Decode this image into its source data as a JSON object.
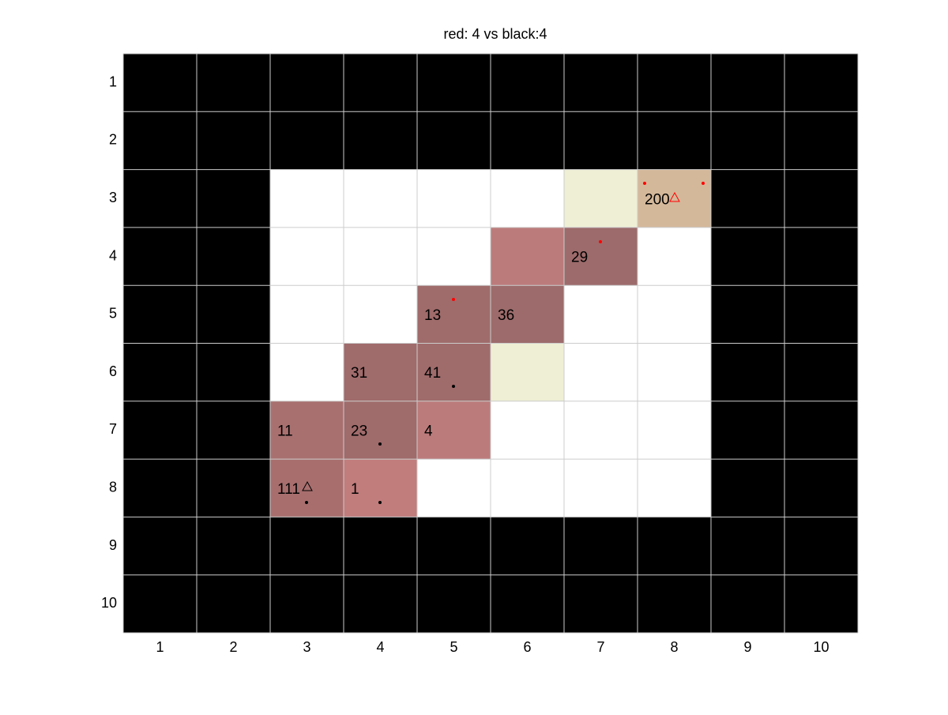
{
  "board": {
    "title": "red: 4 vs black:4",
    "row_labels": [
      1,
      2,
      3,
      4,
      5,
      6,
      7,
      8,
      9,
      10
    ],
    "col_labels": [
      1,
      2,
      3,
      4,
      5,
      6,
      7,
      8,
      9,
      10
    ],
    "cell_labels": [
      [
        null,
        null,
        null,
        null,
        null,
        null,
        null,
        null,
        null,
        null
      ],
      [
        null,
        null,
        null,
        null,
        null,
        null,
        null,
        null,
        null,
        null
      ],
      [
        null,
        null,
        null,
        null,
        null,
        null,
        null,
        "200",
        null,
        null
      ],
      [
        null,
        null,
        null,
        null,
        null,
        null,
        "29",
        null,
        null,
        null
      ],
      [
        null,
        null,
        null,
        null,
        "13",
        "36",
        null,
        null,
        null,
        null
      ],
      [
        null,
        null,
        null,
        "31",
        "41",
        null,
        null,
        null,
        null,
        null
      ],
      [
        null,
        null,
        "11",
        "23",
        "4",
        null,
        null,
        null,
        null,
        null
      ],
      [
        null,
        null,
        "111",
        "1",
        null,
        null,
        null,
        null,
        null,
        null
      ],
      [
        null,
        null,
        null,
        null,
        null,
        null,
        null,
        null,
        null,
        null
      ],
      [
        null,
        null,
        null,
        null,
        null,
        null,
        null,
        null,
        null,
        null
      ]
    ]
  }
}
